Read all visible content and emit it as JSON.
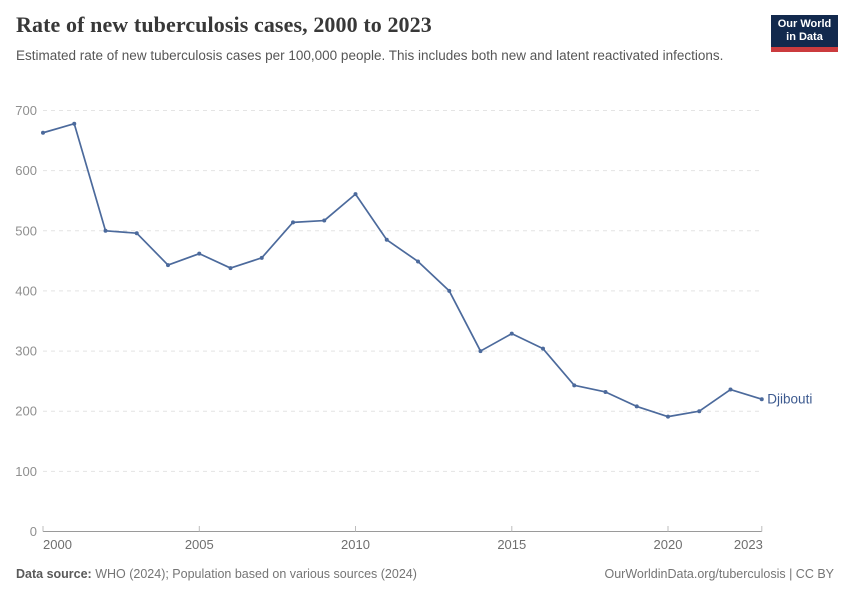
{
  "header": {
    "title": "Rate of new tuberculosis cases, 2000 to 2023",
    "subtitle": "Estimated rate of new tuberculosis cases per 100,000 people. This includes both new and latent reactivated infections."
  },
  "logo": {
    "line1": "Our World",
    "line2": "in Data",
    "bg_color": "#12294d",
    "accent_color": "#cb3b3e"
  },
  "chart_data": {
    "type": "line",
    "title": "Rate of new tuberculosis cases, 2000 to 2023",
    "xlabel": "",
    "ylabel": "",
    "x": [
      2000,
      2001,
      2002,
      2003,
      2004,
      2005,
      2006,
      2007,
      2008,
      2009,
      2010,
      2011,
      2012,
      2013,
      2014,
      2015,
      2016,
      2017,
      2018,
      2019,
      2020,
      2021,
      2022,
      2023
    ],
    "series": [
      {
        "name": "Djibouti",
        "values": [
          663,
          678,
          500,
          496,
          443,
          462,
          438,
          455,
          514,
          517,
          561,
          485,
          449,
          400,
          300,
          329,
          304,
          243,
          232,
          208,
          191,
          200,
          236,
          220
        ],
        "color": "#4c6a9c",
        "label_color": "#3d5a8f"
      }
    ],
    "ylim": [
      0,
      700
    ],
    "y_ticks": [
      0,
      100,
      200,
      300,
      400,
      500,
      600,
      700
    ],
    "x_ticks": [
      2000,
      2005,
      2010,
      2015,
      2020,
      2023
    ],
    "grid": "horizontal-dashed",
    "legend_position": "end-of-line-label",
    "marker": "point"
  },
  "axis_style": {
    "grid_color": "#e4e4e4",
    "axis_color": "#9a9a9a",
    "tick_color": "#bdbdbd",
    "y_label_color": "#8f8f8f",
    "x_label_color": "#6f6f6f"
  },
  "footer": {
    "datasource_label": "Data source: ",
    "datasource_text": "WHO (2024); Population based on various sources (2024)",
    "link_text": "OurWorldinData.org/tuberculosis | CC BY"
  }
}
